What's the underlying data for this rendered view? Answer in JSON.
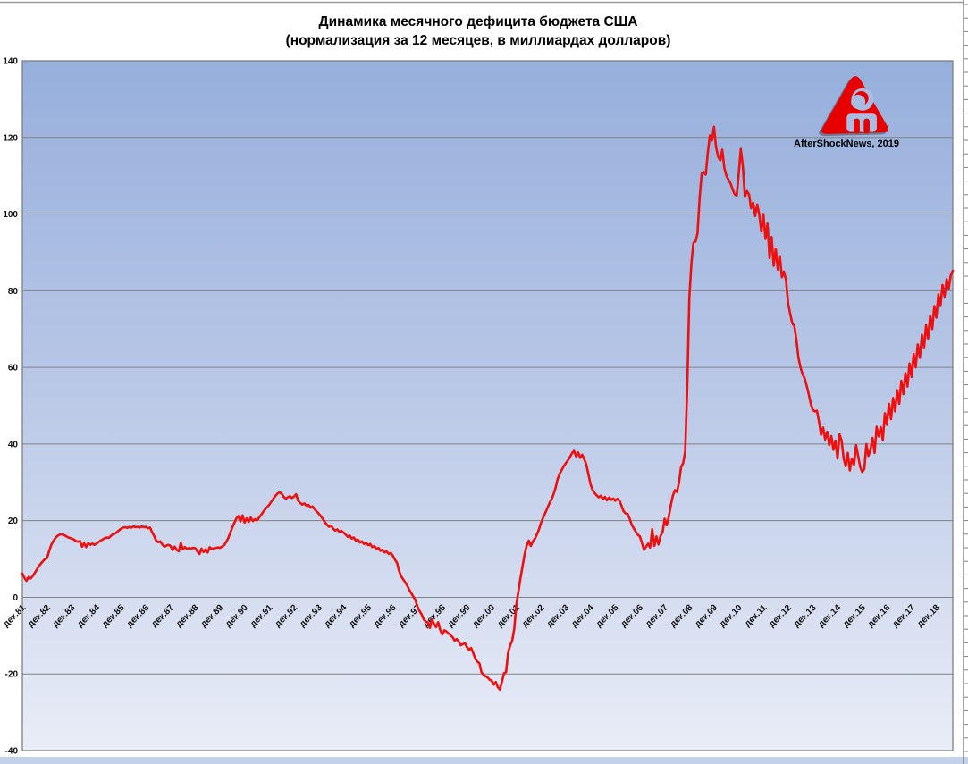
{
  "title": {
    "line1": "Динамика месячного дефицита бюджета США",
    "line2": "(нормализация за 12 месяцев, в миллиардах долларов)"
  },
  "watermark": {
    "text": "AfterShockNews, 2019",
    "logo": "aftershock-logo"
  },
  "colors": {
    "line": "#ee0f0f",
    "logo_red": "#e60000",
    "logo_cutout": "#a8bde4",
    "gridline": "#828282",
    "plot_border": "#7f7f7f",
    "plot_gradient_top": "#96afdc",
    "plot_gradient_bottom": "#e9edf7",
    "page_top_line": "#9a9a9a",
    "bottom_strip": "#c3d1ea"
  },
  "chart_data": {
    "type": "line",
    "title": "Динамика месячного дефицита бюджета США",
    "subtitle": "(нормализация за 12 месяцев, в миллиардах долларов)",
    "ylim": [
      -40,
      140
    ],
    "grid": true,
    "legend": false,
    "y_ticks": [
      140,
      120,
      100,
      80,
      60,
      40,
      20,
      0,
      -20,
      -40
    ],
    "x_tick_labels": [
      "дек.81",
      "дек.82",
      "дек.83",
      "дек.84",
      "дек.85",
      "дек.86",
      "дек.87",
      "дек.88",
      "дек.89",
      "дек.90",
      "дек.91",
      "дек.92",
      "дек.93",
      "дек.94",
      "дек.95",
      "дек.96",
      "дек.97",
      "дек.98",
      "дек.99",
      "дек.00",
      "дек.01",
      "дек.02",
      "дек.03",
      "дек.04",
      "дек.05",
      "дек.06",
      "дек.07",
      "дек.08",
      "дек.09",
      "дек.10",
      "дек.11",
      "дек.12",
      "дек.13",
      "дек.14",
      "дек.15",
      "дек.16",
      "дек.17",
      "дек.18"
    ],
    "x_unit": "months since Dec 1981 (1 value per month)",
    "series": [
      {
        "name": "Месячный дефицит бюджета США, 12-мес. нормализация, млрд $",
        "color": "#ee0f0f",
        "start_label": "дек.81",
        "values": [
          6.2,
          5.1,
          4.3,
          5.3,
          4.9,
          5.5,
          6.3,
          7.2,
          8.1,
          8.8,
          9.4,
          10.0,
          10.2,
          12.0,
          13.6,
          14.6,
          15.4,
          16.0,
          16.3,
          16.5,
          16.3,
          16.0,
          15.7,
          15.5,
          15.3,
          15.1,
          14.7,
          14.5,
          14.7,
          13.2,
          14.1,
          13.1,
          14.2,
          13.7,
          14.0,
          13.7,
          14.0,
          14.4,
          14.8,
          15.1,
          15.4,
          15.6,
          15.5,
          16.0,
          16.4,
          16.6,
          17.0,
          17.5,
          17.9,
          18.2,
          18.3,
          18.1,
          18.4,
          18.2,
          18.5,
          18.3,
          18.4,
          18.2,
          18.5,
          18.3,
          18.4,
          18.0,
          18.2,
          17.0,
          16.0,
          14.8,
          14.4,
          14.6,
          13.8,
          13.2,
          13.5,
          13.7,
          13.4,
          12.3,
          13.2,
          12.4,
          12.0,
          14.2,
          12.5,
          13.1,
          12.6,
          12.9,
          12.7,
          12.9,
          12.8,
          12.0,
          11.3,
          12.7,
          11.8,
          12.5,
          11.7,
          13.1,
          12.6,
          12.8,
          12.9,
          13.0,
          12.9,
          13.2,
          13.6,
          14.4,
          15.4,
          16.8,
          18.2,
          19.4,
          20.6,
          21.2,
          19.8,
          21.4,
          19.5,
          20.6,
          19.7,
          20.8,
          19.9,
          20.4,
          20.1,
          20.8,
          21.5,
          22.3,
          23.0,
          23.6,
          24.2,
          25.0,
          25.8,
          26.5,
          27.1,
          27.4,
          27.0,
          26.2,
          25.7,
          26.1,
          26.4,
          25.9,
          26.3,
          26.9,
          25.2,
          24.6,
          24.2,
          24.5,
          23.9,
          24.1,
          23.4,
          23.7,
          23.0,
          22.4,
          21.8,
          21.2,
          20.4,
          19.6,
          18.9,
          18.4,
          18.7,
          17.9,
          17.4,
          17.7,
          17.1,
          17.3,
          16.9,
          16.4,
          15.8,
          16.1,
          15.3,
          15.6,
          14.8,
          15.1,
          14.3,
          14.6,
          13.9,
          14.2,
          13.6,
          13.9,
          13.1,
          13.4,
          12.6,
          12.9,
          12.1,
          12.4,
          11.7,
          12.0,
          11.3,
          11.6,
          10.8,
          9.8,
          9.0,
          6.9,
          5.5,
          4.7,
          3.9,
          3.0,
          1.9,
          1.0,
          0.1,
          -0.8,
          -2.5,
          -3.6,
          -4.5,
          -5.8,
          -6.3,
          -6.6,
          -8.0,
          -5.8,
          -6.9,
          -7.8,
          -6.5,
          -8.5,
          -9.7,
          -8.6,
          -8.9,
          -9.4,
          -9.9,
          -10.4,
          -11.3,
          -10.9,
          -11.6,
          -12.5,
          -12.2,
          -12.0,
          -13.0,
          -13.7,
          -13.2,
          -14.5,
          -16.0,
          -16.8,
          -17.2,
          -19.5,
          -20.2,
          -20.6,
          -20.9,
          -21.5,
          -21.8,
          -22.8,
          -22.1,
          -23.5,
          -24.1,
          -22.0,
          -19.8,
          -19.5,
          -14.4,
          -12.5,
          -11.3,
          -8.1,
          -2.0,
          1.5,
          5.0,
          8.2,
          11.3,
          13.5,
          14.8,
          13.4,
          14.6,
          15.3,
          16.5,
          17.8,
          19.5,
          20.8,
          22.0,
          23.2,
          24.5,
          25.5,
          26.8,
          28.5,
          30.8,
          32.2,
          33.2,
          34.2,
          35.0,
          35.7,
          36.6,
          37.6,
          38.2,
          36.8,
          37.8,
          36.4,
          37.2,
          36.0,
          34.6,
          32.0,
          29.5,
          28.0,
          27.2,
          26.6,
          26.1,
          26.5,
          25.6,
          26.2,
          25.3,
          26.0,
          25.4,
          25.8,
          25.2,
          25.7,
          25.3,
          24.0,
          22.5,
          21.9,
          21.8,
          20.5,
          19.0,
          18.0,
          17.1,
          16.3,
          15.9,
          14.2,
          12.4,
          13.2,
          14.0,
          13.0,
          17.8,
          13.4,
          15.9,
          13.8,
          16.0,
          17.0,
          20.5,
          18.8,
          21.0,
          24.0,
          26.5,
          28.0,
          27.5,
          30.0,
          34.0,
          35.0,
          38.0,
          55.0,
          78.0,
          87.0,
          92.5,
          92.8,
          95.0,
          104.0,
          110.5,
          111.0,
          110.3,
          116.0,
          120.5,
          119.2,
          122.8,
          117.5,
          115.0,
          114.0,
          116.8,
          112.0,
          110.0,
          109.0,
          108.0,
          106.5,
          105.2,
          104.8,
          110.5,
          117.0,
          112.5,
          104.5,
          106.0,
          105.2,
          101.5,
          103.0,
          99.5,
          102.5,
          99.8,
          95.5,
          100.0,
          93.5,
          97.5,
          88.5,
          94.0,
          86.5,
          91.0,
          85.5,
          89.0,
          83.5,
          85.0,
          82.8,
          76.6,
          74.0,
          71.5,
          70.8,
          67.2,
          62.5,
          60.0,
          58.2,
          57.2,
          55.2,
          53.0,
          50.5,
          48.9,
          48.5,
          48.7,
          45.9,
          42.4,
          44.3,
          41.2,
          43.2,
          39.7,
          42.1,
          38.5,
          40.9,
          36.2,
          42.5,
          40.9,
          36.2,
          34.2,
          37.7,
          33.1,
          36.2,
          34.6,
          39.7,
          36.9,
          34.0,
          32.7,
          33.5,
          40.0,
          36.9,
          38.5,
          41.6,
          37.7,
          44.5,
          42.0,
          44.4,
          41.0,
          48.0,
          45.0,
          50.5,
          46.5,
          52.0,
          48.5,
          54.0,
          50.5,
          56.5,
          53.0,
          58.5,
          55.0,
          61.0,
          57.5,
          63.5,
          60.0,
          66.0,
          62.5,
          68.5,
          65.0,
          71.0,
          67.5,
          73.5,
          70.0,
          76.0,
          73.0,
          79.0,
          76.0,
          81.5,
          78.5,
          83.0,
          80.5,
          84.0,
          85.2
        ]
      }
    ]
  }
}
